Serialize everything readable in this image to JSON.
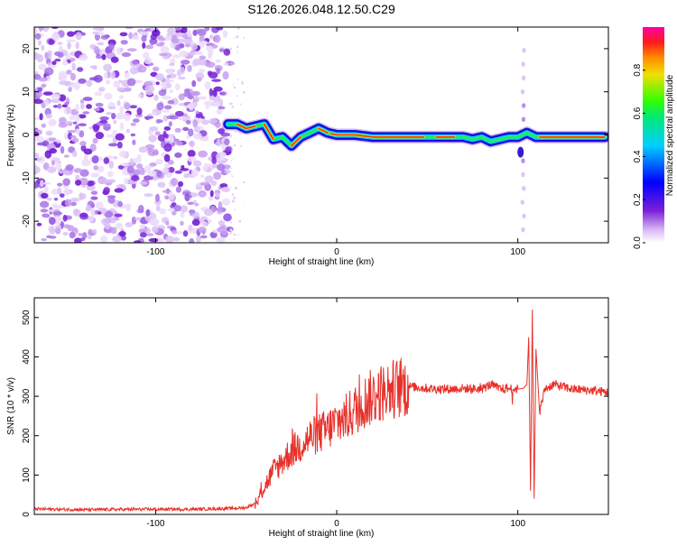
{
  "title": "S126.2026.048.12.50.C29",
  "chart_data": [
    {
      "type": "heatmap",
      "xlabel": "Height of straight line (km)",
      "ylabel": "Frequency (Hz)",
      "xlim": [
        -167,
        150
      ],
      "ylim": [
        -25,
        25
      ],
      "xticks": [
        -100,
        0,
        100
      ],
      "yticks": [
        -20,
        -10,
        0,
        10,
        20
      ],
      "noise_region_x": [
        -167,
        -59
      ],
      "signal_track": {
        "x": [
          -60,
          -55,
          -50,
          -45,
          -40,
          -35,
          -30,
          -25,
          -20,
          -15,
          -10,
          -5,
          0,
          10,
          20,
          30,
          40,
          50,
          60,
          70,
          75,
          80,
          85,
          90,
          95,
          100,
          105,
          110,
          120,
          130,
          140,
          148
        ],
        "freq": [
          2.5,
          2.5,
          1.5,
          2.0,
          2.5,
          -1.0,
          -0.5,
          -2.5,
          -0.5,
          0.5,
          1.5,
          0.5,
          0.0,
          0.0,
          -0.5,
          -0.5,
          -0.5,
          -0.5,
          -0.5,
          -0.5,
          -1.0,
          -0.5,
          -1.5,
          -1.0,
          -0.5,
          -0.5,
          0.5,
          -0.5,
          -0.5,
          -0.5,
          -0.5,
          -0.5
        ]
      },
      "colorbar": {
        "label": "Normalized spectral amplitude",
        "range": [
          0,
          1
        ],
        "ticks": [
          "0.0",
          "0.2",
          "0.4",
          "0.6",
          "0.8"
        ]
      }
    },
    {
      "type": "line",
      "xlabel": "Height of straight line (km)",
      "ylabel": "SNR (10 * v/v)",
      "xlim": [
        -167,
        150
      ],
      "ylim": [
        0,
        550
      ],
      "xticks": [
        -100,
        0,
        100
      ],
      "yticks": [
        0,
        100,
        200,
        300,
        400,
        500
      ],
      "series": [
        {
          "name": "SNR",
          "color": "#e8302a",
          "x": [
            -167,
            -140,
            -110,
            -80,
            -60,
            -50,
            -45,
            -40,
            -35,
            -30,
            -25,
            -20,
            -15,
            -10,
            -5,
            0,
            5,
            10,
            15,
            20,
            25,
            30,
            35,
            40,
            50,
            60,
            70,
            80,
            85,
            90,
            95,
            100,
            103,
            105,
            106,
            107,
            108,
            109,
            110,
            112,
            115,
            120,
            130,
            140,
            150
          ],
          "values": [
            14,
            12,
            13,
            13,
            15,
            17,
            28,
            70,
            110,
            135,
            160,
            175,
            195,
            205,
            215,
            235,
            245,
            265,
            285,
            300,
            310,
            318,
            322,
            325,
            320,
            318,
            320,
            318,
            330,
            318,
            320,
            318,
            320,
            330,
            450,
            60,
            520,
            40,
            420,
            260,
            320,
            330,
            318,
            315,
            310
          ]
        }
      ]
    }
  ]
}
